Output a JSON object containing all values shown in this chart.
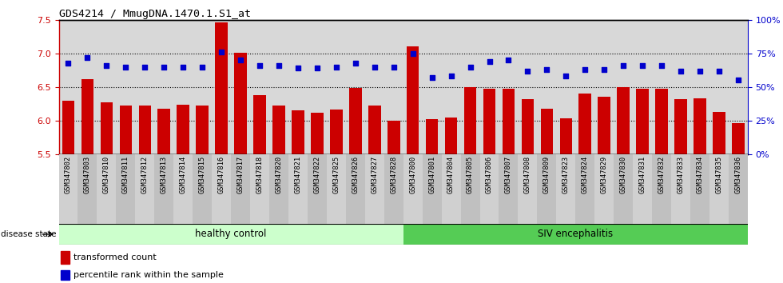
{
  "title": "GDS4214 / MmugDNA.1470.1.S1_at",
  "samples": [
    "GSM347802",
    "GSM347803",
    "GSM347810",
    "GSM347811",
    "GSM347812",
    "GSM347813",
    "GSM347814",
    "GSM347815",
    "GSM347816",
    "GSM347817",
    "GSM347818",
    "GSM347820",
    "GSM347821",
    "GSM347822",
    "GSM347825",
    "GSM347826",
    "GSM347827",
    "GSM347828",
    "GSM347800",
    "GSM347801",
    "GSM347804",
    "GSM347805",
    "GSM347806",
    "GSM347807",
    "GSM347808",
    "GSM347809",
    "GSM347823",
    "GSM347824",
    "GSM347829",
    "GSM347830",
    "GSM347831",
    "GSM347832",
    "GSM347833",
    "GSM347834",
    "GSM347835",
    "GSM347836"
  ],
  "bar_values": [
    6.3,
    6.62,
    6.27,
    6.22,
    6.22,
    6.18,
    6.24,
    6.22,
    7.46,
    7.01,
    6.38,
    6.23,
    6.15,
    6.12,
    6.17,
    6.49,
    6.23,
    6.0,
    7.1,
    6.02,
    6.05,
    6.5,
    6.48,
    6.48,
    6.32,
    6.18,
    6.04,
    6.4,
    6.36,
    6.5,
    6.47,
    6.47,
    6.32,
    6.33,
    6.13,
    5.96
  ],
  "percentile_values": [
    68,
    72,
    66,
    65,
    65,
    65,
    65,
    65,
    76,
    70,
    66,
    66,
    64,
    64,
    65,
    68,
    65,
    65,
    75,
    57,
    58,
    65,
    69,
    70,
    62,
    63,
    58,
    63,
    63,
    66,
    66,
    66,
    62,
    62,
    62,
    55
  ],
  "healthy_control_count": 18,
  "ylim_left": [
    5.5,
    7.5
  ],
  "ylim_right": [
    0,
    100
  ],
  "yticks_left": [
    5.5,
    6.0,
    6.5,
    7.0,
    7.5
  ],
  "yticks_right": [
    0,
    25,
    50,
    75,
    100
  ],
  "ytick_labels_right": [
    "0%",
    "25%",
    "50%",
    "75%",
    "100%"
  ],
  "bar_color": "#CC0000",
  "dot_color": "#0000CC",
  "healthy_bg": "#CCFFCC",
  "siv_bg": "#55CC55",
  "label_healthy": "healthy control",
  "label_siv": "SIV encephalitis",
  "legend_bar": "transformed count",
  "legend_dot": "percentile rank within the sample",
  "disease_state_label": "disease state",
  "plot_bg": "#D8D8D8",
  "stripe_even": "#D0D0D0",
  "stripe_odd": "#C0C0C0"
}
